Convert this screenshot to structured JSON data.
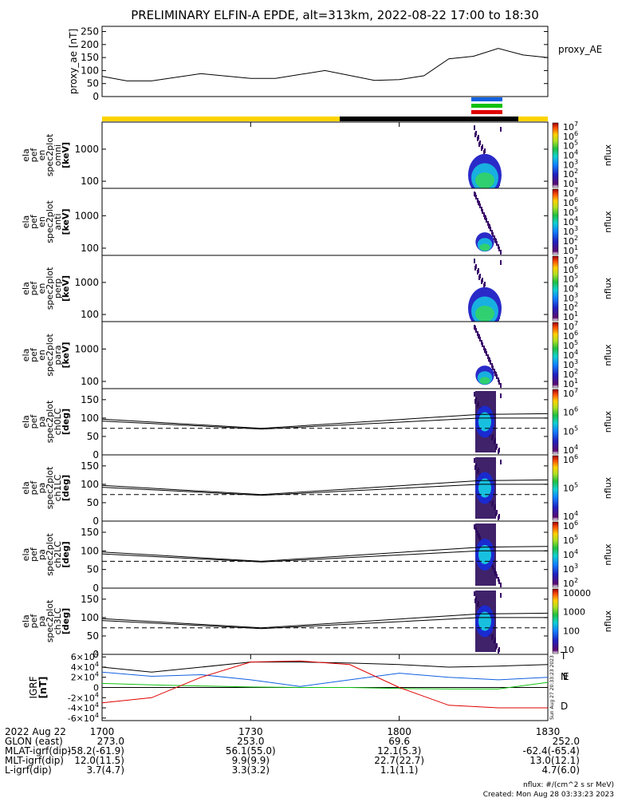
{
  "title": "PRELIMINARY ELFIN-A EPDE, alt=313km, 2022-08-22 17:00 to 18:30",
  "colors": {
    "yellow": "#ffd400",
    "black": "#000000",
    "blue": "#1060e0",
    "green": "#10c010",
    "red": "#e00000"
  },
  "chart_data": [
    {
      "type": "line",
      "name": "proxy_ae",
      "ylabel": "proxy_ae [nT]",
      "legend": "proxy_AE",
      "ylim": [
        0,
        270
      ],
      "yticks": [
        "0",
        "50",
        "100",
        "150",
        "200",
        "250"
      ],
      "x": [
        "17:00",
        "17:05",
        "17:10",
        "17:20",
        "17:30",
        "17:35",
        "17:45",
        "17:55",
        "18:00",
        "18:05",
        "18:10",
        "18:15",
        "18:20",
        "18:25",
        "18:30"
      ],
      "values": [
        78,
        60,
        60,
        88,
        70,
        70,
        100,
        62,
        65,
        80,
        145,
        155,
        185,
        160,
        150
      ]
    },
    {
      "type": "heatmap",
      "name": "ela_pef_en_spec2plot_omni",
      "ylabel_lines": [
        "ela",
        "pef",
        "en",
        "spec2plot",
        "omni",
        "[keV]"
      ],
      "yticks": [
        "100",
        "1000"
      ],
      "colorbar_ticks": [
        "10^1",
        "10^2",
        "10^3",
        "10^4",
        "10^5",
        "10^6",
        "10^7"
      ],
      "colorbar_label": "nflux"
    },
    {
      "type": "heatmap",
      "name": "ela_pef_en_spec2plot_anti",
      "ylabel_lines": [
        "ela",
        "pef",
        "en",
        "spec2plot",
        "anti",
        "[keV]"
      ],
      "yticks": [
        "100",
        "1000"
      ],
      "colorbar_ticks": [
        "10^1",
        "10^2",
        "10^3",
        "10^4",
        "10^5",
        "10^6",
        "10^7"
      ],
      "colorbar_label": "nflux"
    },
    {
      "type": "heatmap",
      "name": "ela_pef_en_spec2plot_perp",
      "ylabel_lines": [
        "ela",
        "pef",
        "en",
        "spec2plot",
        "perp",
        "[keV]"
      ],
      "yticks": [
        "100",
        "1000"
      ],
      "colorbar_ticks": [
        "10^1",
        "10^2",
        "10^3",
        "10^4",
        "10^5",
        "10^6",
        "10^7"
      ],
      "colorbar_label": "nflux"
    },
    {
      "type": "heatmap",
      "name": "ela_pef_en_spec2plot_para",
      "ylabel_lines": [
        "ela",
        "pef",
        "en",
        "spec2plot",
        "para",
        "[keV]"
      ],
      "yticks": [
        "100",
        "1000"
      ],
      "colorbar_ticks": [
        "10^1",
        "10^2",
        "10^3",
        "10^4",
        "10^5",
        "10^6",
        "10^7"
      ],
      "colorbar_label": "nflux"
    },
    {
      "type": "heatmap",
      "name": "ela_pef_pa_spec2plot_ch0LC",
      "ylabel_lines": [
        "ela",
        "pef",
        "pa",
        "spec2plot",
        "ch0LC",
        "[deg]"
      ],
      "yticks": [
        "0",
        "50",
        "100",
        "150"
      ],
      "colorbar_ticks": [
        "10^4",
        "10^5",
        "10^6",
        "10^7"
      ],
      "colorbar_label": "nflux"
    },
    {
      "type": "heatmap",
      "name": "ela_pef_pa_spec2plot_ch1LC",
      "ylabel_lines": [
        "ela",
        "pef",
        "pa",
        "spec2plot",
        "ch1LC",
        "[deg]"
      ],
      "yticks": [
        "0",
        "50",
        "100",
        "150"
      ],
      "colorbar_ticks": [
        "10^4",
        "10^5",
        "10^6"
      ],
      "colorbar_label": "nflux"
    },
    {
      "type": "heatmap",
      "name": "ela_pef_pa_spec2plot_ch2LC",
      "ylabel_lines": [
        "ela",
        "pef",
        "pa",
        "spec2plot",
        "ch2LC",
        "[deg]"
      ],
      "yticks": [
        "0",
        "50",
        "100",
        "150"
      ],
      "colorbar_ticks": [
        "10^2",
        "10^3",
        "10^4",
        "10^5",
        "10^6"
      ],
      "colorbar_label": "nflux"
    },
    {
      "type": "heatmap",
      "name": "ela_pef_pa_spec2plot_ch3LC",
      "ylabel_lines": [
        "ela",
        "pef",
        "pa",
        "spec2plot",
        "ch3LC",
        "[deg]"
      ],
      "yticks": [
        "0",
        "50",
        "100",
        "150"
      ],
      "colorbar_ticks": [
        "10",
        "100",
        "1000",
        "10000"
      ],
      "colorbar_label": "nflux"
    },
    {
      "type": "line",
      "name": "IGRF",
      "ylabel": "IGRF [nT]",
      "ylim": [
        -65000,
        65000
      ],
      "yticks": [
        "-6×10^4",
        "-4×10^4",
        "-2×10^4",
        "0",
        "2×10^4",
        "4×10^4",
        "6×10^4"
      ],
      "x": [
        "17:00",
        "17:10",
        "17:20",
        "17:30",
        "17:40",
        "17:50",
        "18:00",
        "18:10",
        "18:20",
        "18:30"
      ],
      "series": [
        {
          "name": "T",
          "values": [
            40000,
            30000,
            40000,
            50000,
            50000,
            48000,
            45000,
            40000,
            42000,
            45000
          ]
        },
        {
          "name": "N",
          "values": [
            30000,
            22000,
            25000,
            15000,
            2000,
            15000,
            28000,
            20000,
            15000,
            20000
          ]
        },
        {
          "name": "E",
          "values": [
            8000,
            5000,
            3000,
            1000,
            0,
            0,
            -2000,
            -3000,
            -3000,
            10000
          ]
        },
        {
          "name": "D",
          "values": [
            -30000,
            -20000,
            20000,
            50000,
            52000,
            45000,
            0,
            -35000,
            -40000,
            -40000
          ]
        }
      ]
    }
  ],
  "xaxis_table": {
    "rows": [
      {
        "label": "2022 Aug 22",
        "values": [
          "1700",
          "1730",
          "1800",
          "1830"
        ]
      },
      {
        "label": "GLON (east)",
        "values": [
          "273.0",
          "253.0",
          "69.6",
          "252.0"
        ]
      },
      {
        "label": "MLAT-igrf(dip)",
        "values": [
          "-58.2(-61.9)",
          "56.1(55.0)",
          "12.1(5.3)",
          "-62.4(-65.4)"
        ]
      },
      {
        "label": "MLT-igrf(dip)",
        "values": [
          "12.0(11.5)",
          "9.9(9.9)",
          "22.7(22.7)",
          "13.0(12.1)"
        ]
      },
      {
        "label": "L-igrf(dip)",
        "values": [
          "3.7(4.7)",
          "3.3(3.2)",
          "1.1(1.1)",
          "4.7(6.0)"
        ]
      }
    ]
  },
  "footer": {
    "units": "nflux: #/(cm^2 s sr MeV)",
    "created": "Created: Mon Aug 28 03:33:23 2023"
  },
  "side_stamp": "Sun Aug 27 20:33:23 2023"
}
